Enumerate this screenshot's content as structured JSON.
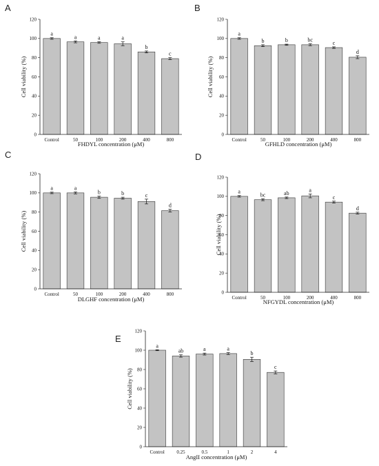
{
  "chart_data": [
    {
      "panel": "A",
      "type": "bar",
      "categories": [
        "Control",
        "50",
        "100",
        "200",
        "400",
        "800"
      ],
      "values": [
        100,
        96.5,
        95.8,
        94.5,
        86,
        79
      ],
      "errors": [
        0.8,
        1.0,
        0.8,
        2.0,
        1.0,
        1.0
      ],
      "significance": [
        "a",
        "a",
        "a",
        "a",
        "b",
        "c"
      ],
      "xlabel": "FHDYL concentration (μM)",
      "ylabel": "Cell viability (%)",
      "ylim": [
        0,
        120
      ],
      "yticks": [
        0,
        20,
        40,
        60,
        80,
        100,
        120
      ],
      "bar_color": "#c3c3c3"
    },
    {
      "panel": "B",
      "type": "bar",
      "categories": [
        "Control",
        "50",
        "100",
        "200",
        "400",
        "800"
      ],
      "values": [
        100,
        92.5,
        93.5,
        93.5,
        90.5,
        80.5
      ],
      "errors": [
        0.8,
        1.0,
        0.6,
        1.0,
        0.8,
        1.5
      ],
      "significance": [
        "a",
        "b",
        "b",
        "bc",
        "c",
        "d"
      ],
      "xlabel": "GFHLD concentration (μM)",
      "ylabel": "Cell viability (%)",
      "ylim": [
        0,
        120
      ],
      "yticks": [
        0,
        20,
        40,
        60,
        80,
        100,
        120
      ],
      "bar_color": "#c3c3c3"
    },
    {
      "panel": "C",
      "type": "bar",
      "categories": [
        "Control",
        "50",
        "100",
        "200",
        "400",
        "800"
      ],
      "values": [
        100,
        100,
        95.5,
        94.5,
        91,
        81.5
      ],
      "errors": [
        0.8,
        1.0,
        1.2,
        1.0,
        2.5,
        1.5
      ],
      "significance": [
        "a",
        "a",
        "b",
        "b",
        "c",
        "d"
      ],
      "xlabel": "DLGHF concentration (μM)",
      "ylabel": "Cell viability (%)",
      "ylim": [
        0,
        120
      ],
      "yticks": [
        0,
        20,
        40,
        60,
        80,
        100,
        120
      ],
      "bar_color": "#c3c3c3"
    },
    {
      "panel": "D",
      "type": "bar",
      "categories": [
        "Control",
        "50",
        "100",
        "200",
        "400",
        "800"
      ],
      "values": [
        100,
        96.5,
        98.5,
        100.5,
        94,
        82.5
      ],
      "errors": [
        0.8,
        1.0,
        0.8,
        2.0,
        1.0,
        1.0
      ],
      "significance": [
        "a",
        "bc",
        "ab",
        "a",
        "c",
        "d"
      ],
      "xlabel": "NFGYDL concentration (μM)",
      "ylabel": "Cell viability (%)",
      "ylim": [
        0,
        120
      ],
      "yticks": [
        0,
        20,
        40,
        60,
        80,
        100,
        120
      ],
      "bar_color": "#c3c3c3"
    },
    {
      "panel": "E",
      "type": "bar",
      "categories": [
        "Control",
        "0.25",
        "0.5",
        "1",
        "2",
        "4"
      ],
      "values": [
        100,
        94,
        96,
        96.5,
        90.5,
        77
      ],
      "errors": [
        0.5,
        1.2,
        1.0,
        1.0,
        2.2,
        1.5
      ],
      "significance": [
        "a",
        "ab",
        "a",
        "a",
        "b",
        "c"
      ],
      "xlabel": "AngII concentration (μM)",
      "ylabel": "Cell viability (%)",
      "ylim": [
        0,
        120
      ],
      "yticks": [
        0,
        20,
        40,
        60,
        80,
        100,
        120
      ],
      "bar_color": "#c3c3c3"
    }
  ]
}
